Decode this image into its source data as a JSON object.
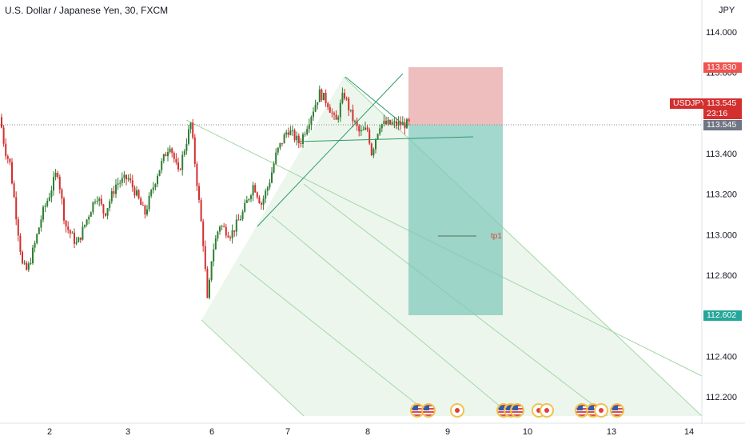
{
  "header": {
    "symbol_title": "U.S. Dollar / Japanese Yen, 30, FXCM",
    "currency_unit": "JPY"
  },
  "price_badges": {
    "stop": "113.830",
    "symbol": "USDJPY",
    "last": "113.545",
    "countdown": "23:16",
    "last_grey": "113.545",
    "target": "112.602"
  },
  "annotation": {
    "tp1": "tp1"
  },
  "colors": {
    "up": "#26a69a",
    "down": "#ef5350",
    "candle": "#d32f2f",
    "stop_zone": "#e8a7a7",
    "target_zone": "#7cc7b9",
    "channel": "#c8e6c9"
  },
  "calendar_events": [
    "us",
    "us",
    "jp",
    "us",
    "us",
    "us",
    "jp",
    "jp",
    "us",
    "us",
    "jp",
    "us"
  ],
  "chart_data": {
    "type": "candlestick",
    "title": "U.S. Dollar / Japanese Yen, 30, FXCM",
    "y_axis": {
      "ticks": [
        "114.000",
        "113.800",
        "113.600",
        "113.400",
        "113.200",
        "113.000",
        "112.800",
        "112.600",
        "112.400",
        "112.200"
      ],
      "range": [
        112.1,
        114.05
      ]
    },
    "x_axis": {
      "ticks": [
        "2",
        "3",
        "6",
        "7",
        "8",
        "9",
        "10",
        "13",
        "14"
      ]
    },
    "close_path": [
      [
        1,
        113.58
      ],
      [
        1.1,
        113.42
      ],
      [
        1.2,
        113.35
      ],
      [
        1.35,
        113.05
      ],
      [
        1.45,
        112.85
      ],
      [
        1.55,
        112.82
      ],
      [
        1.7,
        112.95
      ],
      [
        1.85,
        113.1
      ],
      [
        2.0,
        113.2
      ],
      [
        2.1,
        113.32
      ],
      [
        2.2,
        113.05
      ],
      [
        2.35,
        112.95
      ],
      [
        2.5,
        113.1
      ],
      [
        2.6,
        113.2
      ],
      [
        2.7,
        113.1
      ],
      [
        2.85,
        113.25
      ],
      [
        3.0,
        113.28
      ],
      [
        3.1,
        113.2
      ],
      [
        3.2,
        113.1
      ],
      [
        3.35,
        113.3
      ],
      [
        3.5,
        113.45
      ],
      [
        3.6,
        113.3
      ],
      [
        3.75,
        113.55
      ],
      [
        3.85,
        113.15
      ],
      [
        3.9,
        112.95
      ],
      [
        3.95,
        112.65
      ],
      [
        4.0,
        112.9
      ],
      [
        4.1,
        113.05
      ],
      [
        4.25,
        113.0
      ],
      [
        4.4,
        113.1
      ],
      [
        4.55,
        113.25
      ],
      [
        4.65,
        113.15
      ],
      [
        4.75,
        113.25
      ],
      [
        4.85,
        113.4
      ],
      [
        5.0,
        113.52
      ],
      [
        5.15,
        113.45
      ],
      [
        5.3,
        113.6
      ],
      [
        5.4,
        113.7
      ],
      [
        5.5,
        113.65
      ],
      [
        5.6,
        113.55
      ],
      [
        5.7,
        113.7
      ],
      [
        5.8,
        113.58
      ],
      [
        5.9,
        113.5
      ],
      [
        6.0,
        113.52
      ],
      [
        6.05,
        113.4
      ],
      [
        6.1,
        113.48
      ],
      [
        6.15,
        113.545
      ]
    ],
    "lines": {
      "last_price": 113.545,
      "stop": 113.83,
      "target": 112.602
    }
  }
}
